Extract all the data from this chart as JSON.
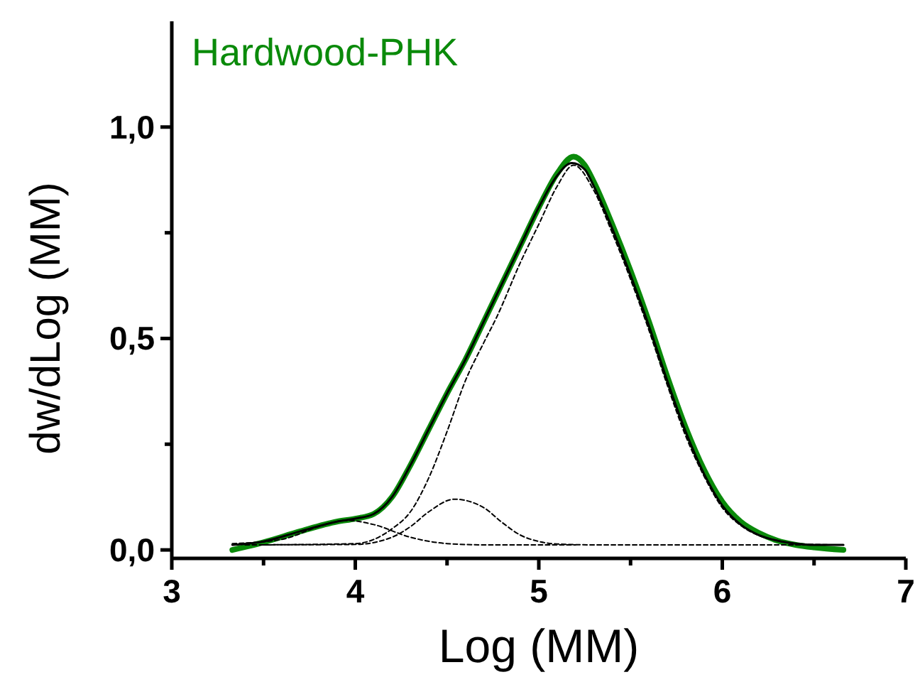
{
  "chart_data": {
    "type": "line",
    "title": "Hardwood-PHK",
    "xlabel": "Log (MM)",
    "ylabel": "dw/dLog (MM)",
    "xlim": [
      3,
      7
    ],
    "ylim": [
      -0.02,
      1.25
    ],
    "xticks": [
      3,
      {
        "value": 3.5,
        "label": null
      },
      4,
      {
        "value": 4.5,
        "label": null
      },
      5,
      {
        "value": 5.5,
        "label": null
      },
      6,
      {
        "value": 6.5,
        "label": null
      },
      7
    ],
    "yticks": [
      {
        "value": 0,
        "label": "0,0"
      },
      {
        "value": 0.25,
        "label": null
      },
      {
        "value": 0.5,
        "label": "0,5"
      },
      {
        "value": 0.75,
        "label": null
      },
      {
        "value": 1,
        "label": "1,0"
      }
    ],
    "grid": false,
    "marker": "none",
    "series": [
      {
        "color": "#0a8a0a",
        "line_style": "solid",
        "x": [
          3.33,
          3.5,
          3.7,
          3.9,
          4.0,
          4.1,
          4.2,
          4.3,
          4.4,
          4.5,
          4.6,
          4.7,
          4.8,
          4.9,
          5.0,
          5.1,
          5.19,
          5.25,
          5.3,
          5.4,
          5.5,
          5.6,
          5.7,
          5.8,
          5.9,
          6.0,
          6.1,
          6.2,
          6.3,
          6.4,
          6.5,
          6.66
        ],
        "values": [
          0.0,
          0.018,
          0.044,
          0.067,
          0.074,
          0.085,
          0.125,
          0.2,
          0.285,
          0.37,
          0.45,
          0.54,
          0.63,
          0.72,
          0.81,
          0.89,
          0.93,
          0.91,
          0.87,
          0.77,
          0.66,
          0.54,
          0.41,
          0.29,
          0.19,
          0.114,
          0.067,
          0.04,
          0.022,
          0.012,
          0.006,
          0.0
        ]
      },
      {
        "color": "#000000",
        "line_style": "solid",
        "x": [
          3.33,
          3.5,
          3.7,
          3.9,
          4.0,
          4.1,
          4.2,
          4.3,
          4.4,
          4.5,
          4.6,
          4.7,
          4.8,
          4.9,
          5.0,
          5.1,
          5.18,
          5.25,
          5.3,
          5.4,
          5.5,
          5.6,
          5.7,
          5.8,
          5.9,
          6.0,
          6.1,
          6.2,
          6.3,
          6.4,
          6.5,
          6.66
        ],
        "values": [
          0.012,
          0.02,
          0.044,
          0.067,
          0.074,
          0.085,
          0.125,
          0.2,
          0.285,
          0.37,
          0.45,
          0.54,
          0.63,
          0.72,
          0.81,
          0.885,
          0.915,
          0.9,
          0.86,
          0.76,
          0.65,
          0.53,
          0.4,
          0.28,
          0.18,
          0.105,
          0.06,
          0.035,
          0.022,
          0.015,
          0.012,
          0.012
        ]
      },
      {
        "color": "#000000",
        "line_style": "dashed",
        "x": [
          3.33,
          3.6,
          3.8,
          3.95,
          4.1,
          4.3,
          4.5,
          4.7,
          5.2
        ],
        "values": [
          0.015,
          0.025,
          0.055,
          0.07,
          0.06,
          0.03,
          0.015,
          0.012,
          0.012
        ]
      },
      {
        "color": "#000000",
        "line_style": "dashed",
        "x": [
          3.4,
          4.0,
          4.2,
          4.3,
          4.4,
          4.54,
          4.7,
          4.8,
          4.9,
          5.0,
          5.1,
          5.3,
          6.66
        ],
        "values": [
          0.012,
          0.013,
          0.03,
          0.055,
          0.09,
          0.12,
          0.1,
          0.065,
          0.035,
          0.02,
          0.014,
          0.012,
          0.012
        ]
      },
      {
        "color": "#000000",
        "line_style": "dashed",
        "x": [
          3.5,
          4.0,
          4.2,
          4.3,
          4.4,
          4.5,
          4.6,
          4.7,
          4.77,
          4.9,
          5.0,
          5.1,
          5.19,
          5.3,
          5.4,
          5.5,
          5.6,
          5.7,
          5.8,
          5.9,
          6.0,
          6.1,
          6.2,
          6.3,
          6.4,
          6.6
        ],
        "values": [
          0.012,
          0.015,
          0.05,
          0.09,
          0.17,
          0.28,
          0.4,
          0.49,
          0.55,
          0.68,
          0.77,
          0.86,
          0.91,
          0.85,
          0.75,
          0.64,
          0.52,
          0.39,
          0.27,
          0.175,
          0.1,
          0.058,
          0.034,
          0.022,
          0.015,
          0.012
        ]
      }
    ]
  }
}
